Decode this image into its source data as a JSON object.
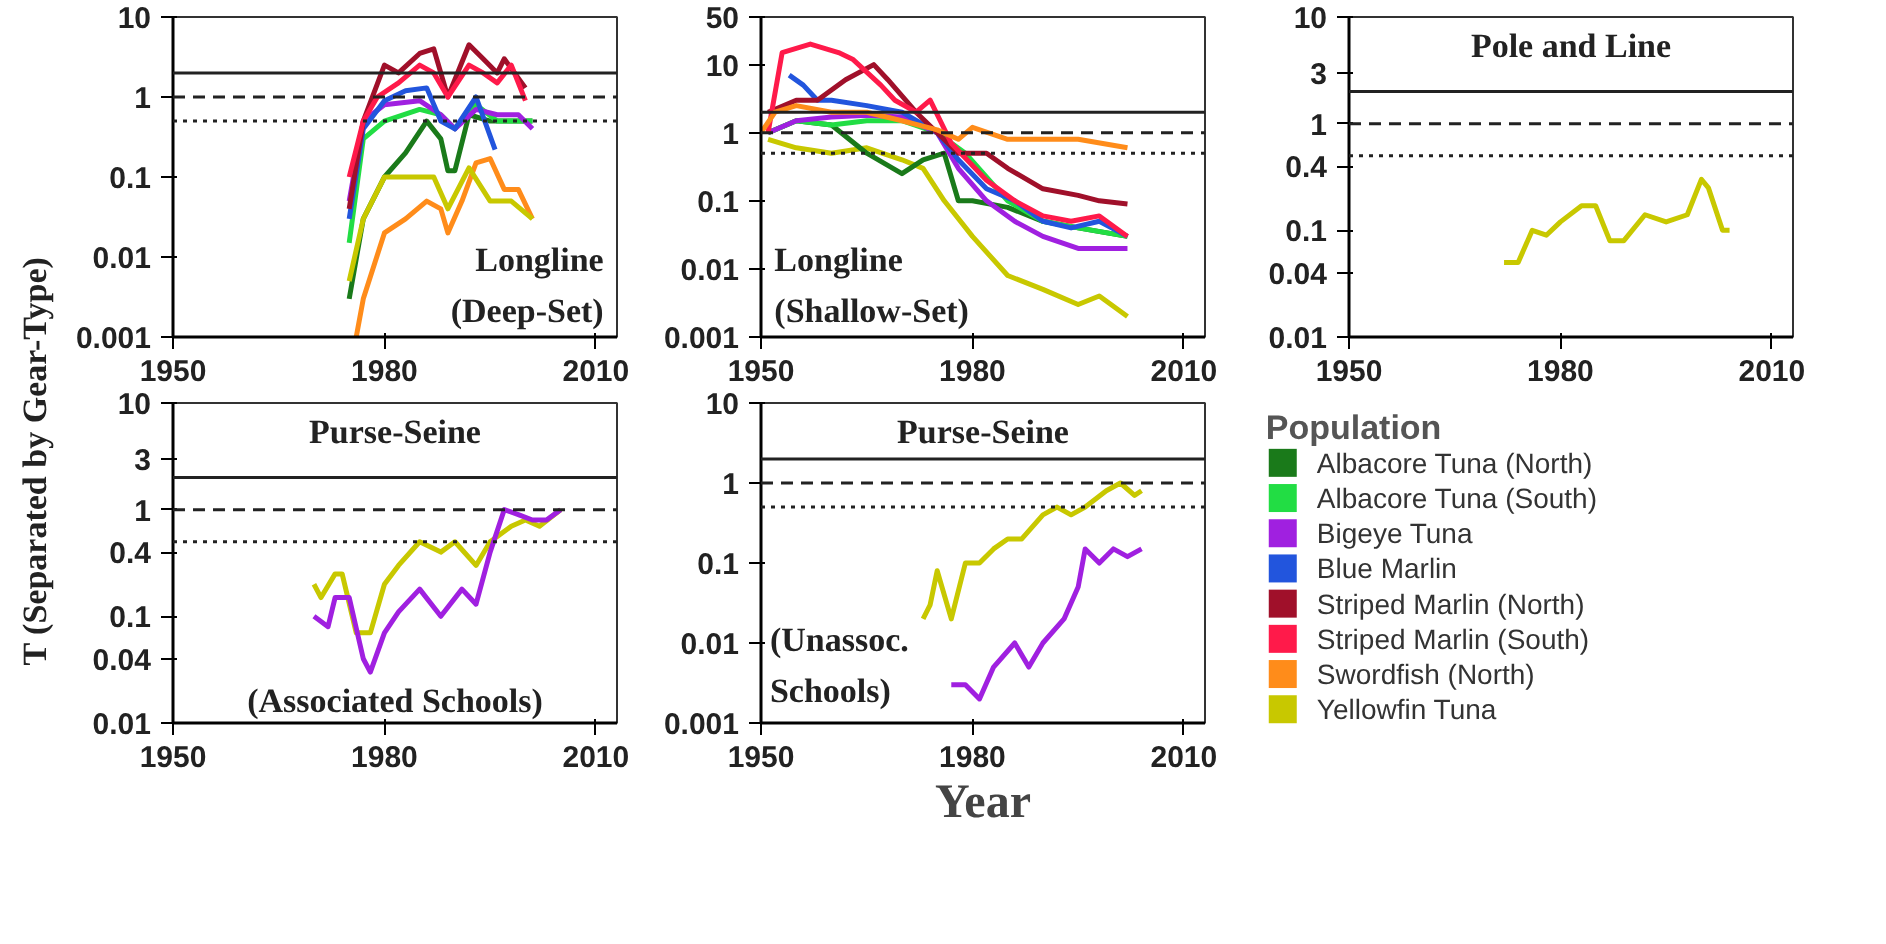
{
  "chart_data": [
    {
      "type": "line",
      "log": "y",
      "ylabel": "T (Separated by Gear-Type)",
      "legend": "right",
      "legend_title": "Population",
      "xlim": [
        1950,
        2013
      ],
      "xticks": [
        1950,
        1980,
        2010
      ],
      "ylim": [
        0.001,
        10
      ],
      "yticks": [
        0.001,
        0.01,
        0.1,
        1,
        10
      ],
      "annotations": [
        "Longline",
        "(Deep-Set)"
      ],
      "ref_lines": [
        {
          "axis": "y",
          "value": 2,
          "line_style": "solid",
          "color": "#222222"
        },
        {
          "axis": "y",
          "value": 1,
          "line_style": "dashed",
          "color": "#222222"
        },
        {
          "axis": "y",
          "value": 0.5,
          "line_style": "dotted",
          "color": "#222222"
        }
      ],
      "series": [
        {
          "name": "Albacore Tuna (North)",
          "color": "#1a7a1a",
          "x": [
            1975,
            1977,
            1980,
            1983,
            1986,
            1988,
            1989,
            1990,
            1992,
            1995,
            1998,
            2001
          ],
          "values": [
            0.003,
            0.03,
            0.1,
            0.2,
            0.5,
            0.3,
            0.12,
            0.12,
            0.6,
            0.5,
            0.5,
            0.5
          ]
        },
        {
          "name": "Albacore Tuna (South)",
          "color": "#22dd44",
          "x": [
            1975,
            1977,
            1980,
            1985,
            1988,
            1990,
            1993,
            1996,
            2001
          ],
          "values": [
            0.015,
            0.3,
            0.5,
            0.7,
            0.6,
            0.4,
            0.8,
            0.5,
            0.5
          ]
        },
        {
          "name": "Bigeye Tuna",
          "color": "#a020e0",
          "x": [
            1975,
            1977,
            1980,
            1985,
            1988,
            1990,
            1993,
            1996,
            1999,
            2001
          ],
          "values": [
            0.05,
            0.5,
            0.8,
            0.9,
            0.6,
            0.4,
            0.7,
            0.6,
            0.6,
            0.4
          ]
        },
        {
          "name": "Blue Marlin",
          "color": "#2255dd",
          "x": [
            1975,
            1977,
            1980,
            1983,
            1986,
            1988,
            1990,
            1993,
            1995.7
          ],
          "values": [
            0.03,
            0.4,
            0.9,
            1.2,
            1.3,
            0.5,
            0.4,
            1,
            0.22
          ]
        },
        {
          "name": "Striped Marlin (North)",
          "color": "#a0102a",
          "x": [
            1975,
            1977,
            1980,
            1982,
            1985,
            1987,
            1989,
            1992,
            1994,
            1996,
            1997,
            2000
          ],
          "values": [
            0.04,
            0.5,
            2.5,
            2,
            3.5,
            4,
            1,
            4.5,
            3,
            2,
            3,
            1.3
          ]
        },
        {
          "name": "Striped Marlin (South)",
          "color": "#ff1a4a",
          "x": [
            1975,
            1977,
            1979,
            1982,
            1985,
            1987,
            1989,
            1992,
            1994,
            1996,
            1998,
            2000
          ],
          "values": [
            0.1,
            0.5,
            1,
            1.5,
            2.5,
            2,
            1,
            2.5,
            2,
            1.5,
            2.5,
            0.9
          ]
        },
        {
          "name": "Swordfish (North)",
          "color": "#ff8c1a",
          "x": [
            1976,
            1977,
            1980,
            1983,
            1986,
            1988,
            1989,
            1991,
            1993,
            1995,
            1997,
            1999,
            2001
          ],
          "values": [
            0.001,
            0.003,
            0.02,
            0.03,
            0.05,
            0.04,
            0.02,
            0.05,
            0.15,
            0.17,
            0.07,
            0.07,
            0.03
          ]
        },
        {
          "name": "Yellowfin Tuna",
          "color": "#c8c800",
          "x": [
            1975,
            1977,
            1980,
            1984,
            1987,
            1989,
            1992,
            1995,
            1998,
            2001
          ],
          "values": [
            0.005,
            0.03,
            0.1,
            0.1,
            0.1,
            0.04,
            0.13,
            0.05,
            0.05,
            0.03
          ]
        }
      ]
    },
    {
      "type": "line",
      "log": "y",
      "xlim": [
        1950,
        2013
      ],
      "xticks": [
        1950,
        1980,
        2010
      ],
      "ylim": [
        0.001,
        50
      ],
      "yticks": [
        0.001,
        0.01,
        0.1,
        1,
        10,
        50
      ],
      "annotations": [
        "Longline",
        "(Shallow-Set)"
      ],
      "ref_lines": [
        {
          "axis": "y",
          "value": 2,
          "line_style": "solid",
          "color": "#222222"
        },
        {
          "axis": "y",
          "value": 1,
          "line_style": "dashed",
          "color": "#222222"
        },
        {
          "axis": "y",
          "value": 0.5,
          "line_style": "dotted",
          "color": "#222222"
        }
      ],
      "series": [
        {
          "color": "#c8c800",
          "x": [
            1951,
            1955,
            1960,
            1965,
            1970,
            1973,
            1976,
            1980,
            1985,
            1990,
            1995,
            1998,
            2002
          ],
          "values": [
            0.8,
            0.6,
            0.5,
            0.6,
            0.4,
            0.3,
            0.1,
            0.03,
            0.008,
            0.005,
            0.003,
            0.004,
            0.002
          ]
        },
        {
          "color": "#1a7a1a",
          "x": [
            1951,
            1955,
            1960,
            1965,
            1970,
            1973,
            1976,
            1978,
            1980,
            1985,
            1990,
            1995,
            2002
          ],
          "values": [
            1,
            1.5,
            1.3,
            0.5,
            0.25,
            0.4,
            0.5,
            0.1,
            0.1,
            0.08,
            0.05,
            0.04,
            0.03
          ]
        },
        {
          "color": "#22dd44",
          "x": [
            1951,
            1955,
            1960,
            1965,
            1970,
            1975,
            1979,
            1985,
            1990,
            1995,
            2002
          ],
          "values": [
            1,
            1.5,
            1.3,
            1.5,
            1.5,
            1,
            0.5,
            0.1,
            0.05,
            0.04,
            0.03
          ]
        },
        {
          "color": "#a020e0",
          "x": [
            1951,
            1955,
            1960,
            1965,
            1970,
            1975,
            1978,
            1982,
            1986,
            1990,
            1995,
            2002
          ],
          "values": [
            1,
            1.5,
            1.7,
            1.8,
            1.7,
            1,
            0.3,
            0.1,
            0.05,
            0.03,
            0.02,
            0.02
          ]
        },
        {
          "color": "#2255dd",
          "x": [
            1954,
            1956,
            1958,
            1960,
            1965,
            1970,
            1975,
            1978,
            1982,
            1986,
            1990,
            1994,
            1998,
            2002
          ],
          "values": [
            7,
            5,
            3,
            3,
            2.5,
            2,
            1,
            0.4,
            0.15,
            0.1,
            0.05,
            0.04,
            0.05,
            0.03
          ]
        },
        {
          "color": "#a0102a",
          "x": [
            1951,
            1955,
            1958,
            1962,
            1966,
            1968,
            1972,
            1975,
            1978,
            1982,
            1985,
            1990,
            1995,
            1998,
            2002
          ],
          "values": [
            2,
            3,
            3,
            6,
            10,
            6,
            2,
            1,
            0.5,
            0.5,
            0.3,
            0.15,
            0.12,
            0.1,
            0.09
          ]
        },
        {
          "color": "#ff1a4a",
          "x": [
            1951,
            1953,
            1957,
            1961,
            1963,
            1967,
            1969,
            1972,
            1974,
            1977,
            1982,
            1986,
            1990,
            1994,
            1998,
            2002
          ],
          "values": [
            1,
            15,
            20,
            15,
            12,
            5,
            3,
            2,
            3,
            0.7,
            0.2,
            0.1,
            0.06,
            0.05,
            0.06,
            0.03
          ]
        },
        {
          "color": "#ff8c1a",
          "x": [
            1950,
            1952,
            1955,
            1960,
            1965,
            1970,
            1975,
            1978,
            1980,
            1985,
            1990,
            1995,
            2002
          ],
          "values": [
            1,
            2,
            2.5,
            2,
            2,
            1.5,
            1.1,
            0.8,
            1.2,
            0.8,
            0.8,
            0.8,
            0.6
          ]
        }
      ]
    },
    {
      "type": "line",
      "log": "y",
      "title": "Pole and Line",
      "xlim": [
        1950,
        2013
      ],
      "xticks": [
        1950,
        1980,
        2010
      ],
      "ylim": [
        0.01,
        10
      ],
      "yticks": [
        0.01,
        0.04,
        0.1,
        0.4,
        1,
        3,
        10
      ],
      "ref_lines": [
        {
          "axis": "y",
          "value": 2,
          "line_style": "solid",
          "color": "#222222"
        },
        {
          "axis": "y",
          "value": 1,
          "line_style": "dashed",
          "color": "#222222"
        },
        {
          "axis": "y",
          "value": 0.5,
          "line_style": "dotted",
          "color": "#222222"
        }
      ],
      "series": [
        {
          "color": "#c8c800",
          "x": [
            1972,
            1974,
            1976,
            1978,
            1980,
            1983,
            1985,
            1987,
            1989,
            1992,
            1995,
            1998,
            2000,
            2001,
            2003,
            2004
          ],
          "values": [
            0.05,
            0.05,
            0.1,
            0.09,
            0.12,
            0.17,
            0.17,
            0.08,
            0.08,
            0.14,
            0.12,
            0.14,
            0.3,
            0.25,
            0.1,
            0.1
          ]
        }
      ]
    },
    {
      "type": "line",
      "log": "y",
      "title": "Purse-Seine",
      "xlim": [
        1950,
        2013
      ],
      "xticks": [
        1950,
        1980,
        2010
      ],
      "ylim": [
        0.01,
        10
      ],
      "yticks": [
        0.01,
        0.04,
        0.1,
        0.4,
        1,
        3,
        10
      ],
      "annotations": [
        "(Associated Schools)"
      ],
      "ref_lines": [
        {
          "axis": "y",
          "value": 2,
          "line_style": "solid",
          "color": "#222222"
        },
        {
          "axis": "y",
          "value": 1,
          "line_style": "dashed",
          "color": "#222222"
        },
        {
          "axis": "y",
          "value": 0.5,
          "line_style": "dotted",
          "color": "#222222"
        }
      ],
      "series": [
        {
          "color": "#c8c800",
          "x": [
            1970,
            1971,
            1973,
            1974,
            1976,
            1978,
            1980,
            1982,
            1985,
            1988,
            1990,
            1993,
            1995,
            1998,
            2000,
            2002,
            2005
          ],
          "values": [
            0.2,
            0.15,
            0.25,
            0.25,
            0.07,
            0.07,
            0.2,
            0.3,
            0.5,
            0.4,
            0.5,
            0.3,
            0.5,
            0.7,
            0.8,
            0.7,
            1
          ]
        },
        {
          "color": "#a020e0",
          "x": [
            1970,
            1972,
            1973,
            1975,
            1977,
            1978,
            1980,
            1982,
            1985,
            1988,
            1991,
            1993,
            1995,
            1997,
            1999,
            2001,
            2003,
            2005
          ],
          "values": [
            0.1,
            0.08,
            0.15,
            0.15,
            0.04,
            0.03,
            0.07,
            0.11,
            0.18,
            0.1,
            0.18,
            0.13,
            0.4,
            1,
            0.9,
            0.8,
            0.8,
            1
          ]
        }
      ]
    },
    {
      "type": "line",
      "log": "y",
      "title": "Purse-Seine",
      "xlabel": "Year",
      "xlim": [
        1950,
        2013
      ],
      "xticks": [
        1950,
        1980,
        2010
      ],
      "ylim": [
        0.001,
        10
      ],
      "yticks": [
        0.001,
        0.01,
        0.1,
        1,
        10
      ],
      "annotations": [
        "(Unassoc.",
        "Schools)"
      ],
      "ref_lines": [
        {
          "axis": "y",
          "value": 2,
          "line_style": "solid",
          "color": "#222222"
        },
        {
          "axis": "y",
          "value": 1,
          "line_style": "dashed",
          "color": "#222222"
        },
        {
          "axis": "y",
          "value": 0.5,
          "line_style": "dotted",
          "color": "#222222"
        }
      ],
      "series": [
        {
          "color": "#c8c800",
          "x": [
            1973,
            1974,
            1975,
            1977,
            1979,
            1981,
            1983,
            1985,
            1987,
            1990,
            1992,
            1994,
            1996,
            1999,
            2001,
            2003,
            2004
          ],
          "values": [
            0.02,
            0.03,
            0.08,
            0.02,
            0.1,
            0.1,
            0.15,
            0.2,
            0.2,
            0.4,
            0.5,
            0.4,
            0.5,
            0.8,
            1,
            0.7,
            0.8
          ]
        },
        {
          "color": "#a020e0",
          "x": [
            1977,
            1979,
            1981,
            1983,
            1986,
            1988,
            1990,
            1993,
            1995,
            1996,
            1998,
            2000,
            2002,
            2004
          ],
          "values": [
            0.003,
            0.003,
            0.002,
            0.005,
            0.01,
            0.005,
            0.01,
            0.02,
            0.05,
            0.15,
            0.1,
            0.15,
            0.12,
            0.15
          ]
        }
      ]
    }
  ]
}
